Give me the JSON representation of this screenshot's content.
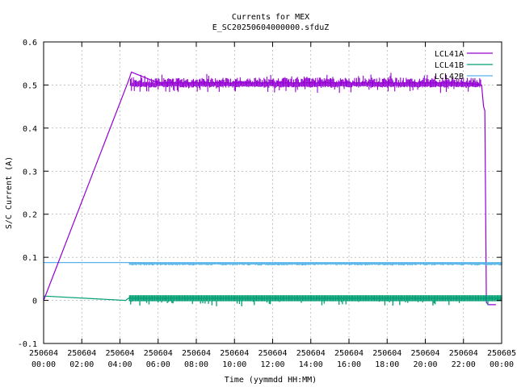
{
  "chart_data": {
    "type": "line",
    "title": "Currents for MEX",
    "subtitle": "E_SC20250604000000.sfduZ",
    "xlabel": "Time (yymmdd HH:MM)",
    "ylabel": "S/C Current (A)",
    "xlim": [
      "2025-06-04 00:00",
      "2025-06-05 00:00"
    ],
    "ylim": [
      -0.1,
      0.6
    ],
    "grid": true,
    "legend_position": "top-right",
    "y_ticks": [
      "-0.1",
      "0",
      "0.1",
      "0.2",
      "0.3",
      "0.4",
      "0.5",
      "0.6"
    ],
    "y_tick_values": [
      -0.1,
      0,
      0.1,
      0.2,
      0.3,
      0.4,
      0.5,
      0.6
    ],
    "x_ticks": [
      {
        "date": "250604",
        "time": "00:00",
        "hour": 0
      },
      {
        "date": "250604",
        "time": "02:00",
        "hour": 2
      },
      {
        "date": "250604",
        "time": "04:00",
        "hour": 4
      },
      {
        "date": "250604",
        "time": "06:00",
        "hour": 6
      },
      {
        "date": "250604",
        "time": "08:00",
        "hour": 8
      },
      {
        "date": "250604",
        "time": "10:00",
        "hour": 10
      },
      {
        "date": "250604",
        "time": "12:00",
        "hour": 12
      },
      {
        "date": "250604",
        "time": "14:00",
        "hour": 14
      },
      {
        "date": "250604",
        "time": "16:00",
        "hour": 16
      },
      {
        "date": "250604",
        "time": "18:00",
        "hour": 18
      },
      {
        "date": "250604",
        "time": "20:00",
        "hour": 20
      },
      {
        "date": "250604",
        "time": "22:00",
        "hour": 22
      },
      {
        "date": "250605",
        "time": "00:00",
        "hour": 24
      }
    ],
    "series": [
      {
        "name": "LCL41A",
        "color": "#9400d3",
        "x": [
          0.0,
          4.45,
          4.6,
          6,
          8,
          10,
          12,
          14,
          16,
          18,
          20,
          22,
          22.95,
          23.05,
          23.12,
          23.2,
          23.3,
          23.7
        ],
        "y": [
          0.0,
          0.51,
          0.53,
          0.505,
          0.505,
          0.505,
          0.505,
          0.505,
          0.505,
          0.505,
          0.505,
          0.505,
          0.5,
          0.45,
          0.44,
          -0.005,
          -0.01,
          -0.01
        ]
      },
      {
        "name": "LCL41B",
        "color": "#009e73",
        "x": [
          0.0,
          4.3,
          4.45,
          6,
          8,
          10,
          12,
          14,
          16,
          18,
          20,
          22,
          23.2,
          24.0
        ],
        "y": [
          0.01,
          0.0,
          0.005,
          0.005,
          0.005,
          0.005,
          0.005,
          0.005,
          0.005,
          0.005,
          0.005,
          0.005,
          0.005,
          0.005
        ]
      },
      {
        "name": "LCL42B",
        "color": "#56b4e9",
        "x": [
          0.0,
          4.45,
          6,
          8,
          10,
          12,
          14,
          16,
          18,
          20,
          22,
          24.0
        ],
        "y": [
          0.088,
          0.088,
          0.085,
          0.085,
          0.085,
          0.085,
          0.085,
          0.085,
          0.085,
          0.085,
          0.085,
          0.085
        ]
      }
    ]
  }
}
